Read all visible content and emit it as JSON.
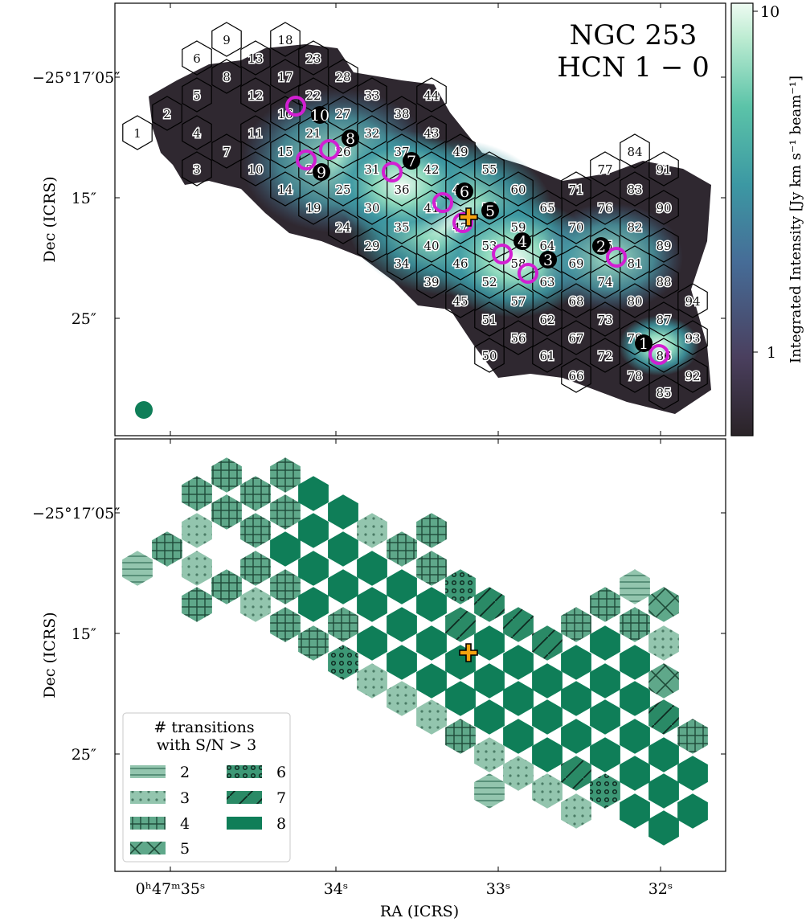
{
  "chart_data": [
    {
      "type": "heatmap",
      "title": "NGC 253",
      "subtitle": "HCN 1 − 0",
      "xlabel": "RA (ICRS)",
      "ylabel": "Dec (ICRS)",
      "colorbar_label": "Integrated Intensity [Jy km s⁻¹ beam⁻¹]",
      "colorbar_scale": "log",
      "colorbar_ticks": [
        "10",
        "1"
      ],
      "colormap": [
        "#2a2327",
        "#4a3f5e",
        "#466c97",
        "#3c98a3",
        "#5bc3a8",
        "#bdecd2",
        "#eefbf2"
      ],
      "hexagon_ids": [
        "1",
        "2",
        "3",
        "4",
        "5",
        "6",
        "7",
        "8",
        "9",
        "10",
        "11",
        "12",
        "13",
        "14",
        "15",
        "16",
        "17",
        "18",
        "19",
        "20",
        "21",
        "22",
        "23",
        "24",
        "25",
        "26",
        "27",
        "28",
        "29",
        "30",
        "31",
        "32",
        "33",
        "34",
        "35",
        "36",
        "37",
        "38",
        "39",
        "40",
        "41",
        "42",
        "43",
        "44",
        "45",
        "46",
        "47",
        "48",
        "49",
        "50",
        "51",
        "52",
        "53",
        "54",
        "55",
        "56",
        "57",
        "58",
        "59",
        "60",
        "61",
        "62",
        "63",
        "64",
        "65",
        "66",
        "67",
        "68",
        "69",
        "70",
        "71",
        "72",
        "73",
        "74",
        "75",
        "76",
        "77",
        "78",
        "79",
        "80",
        "81",
        "82",
        "83",
        "84",
        "85",
        "86",
        "87",
        "88",
        "89",
        "90",
        "91",
        "92",
        "93",
        "94"
      ],
      "marked_regions": [
        "1",
        "2",
        "3",
        "4",
        "5",
        "6",
        "7",
        "8",
        "9",
        "10"
      ],
      "marker_color": "#d21fd2",
      "center_marker_color": "#f5a20f"
    },
    {
      "type": "heatmap",
      "xlabel": "RA (ICRS)",
      "ylabel": "Dec (ICRS)",
      "legend_title": "# transitions with S/N > 3",
      "legend_position": "bottom-left",
      "legend_entries": [
        {
          "label": "2",
          "pattern": "horizontal-lines",
          "color": "#93c5ae"
        },
        {
          "label": "3",
          "pattern": "dots",
          "color": "#93c5ae"
        },
        {
          "label": "4",
          "pattern": "grid",
          "color": "#5fa88a"
        },
        {
          "label": "5",
          "pattern": "cross",
          "color": "#5fa88a"
        },
        {
          "label": "6",
          "pattern": "rings",
          "color": "#3d9876"
        },
        {
          "label": "7",
          "pattern": "diagonal",
          "color": "#2a8a66"
        },
        {
          "label": "8",
          "pattern": "solid",
          "color": "#0f7e58"
        }
      ]
    }
  ],
  "axes": {
    "xticks": [
      "0ʰ47ᵐ35ˢ",
      "34ˢ",
      "33ˢ",
      "32ˢ"
    ],
    "yticks": [
      "−25°17′05″",
      "15″",
      "25″"
    ]
  }
}
